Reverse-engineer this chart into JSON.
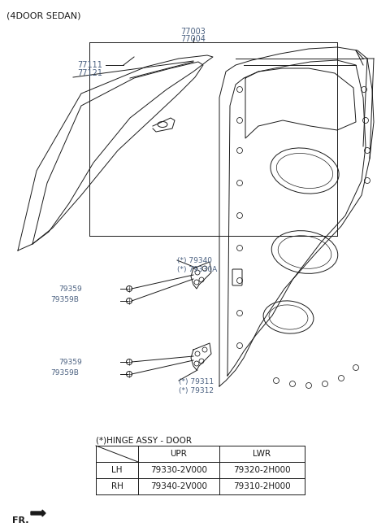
{
  "title": "(4DOOR SEDAN)",
  "bg_color": "#ffffff",
  "blue_color": "#4a6080",
  "black_color": "#1a1a1a",
  "gray_color": "#888888",
  "label_77003": "77003",
  "label_77004": "77004",
  "label_77111": "77111",
  "label_77121": "77121",
  "label_79340": "(*) 79340",
  "label_79330A": "(*) 79330A",
  "label_79359_upper": "79359",
  "label_79359B_upper": "79359B",
  "label_79359_lower": "79359",
  "label_79359B_lower": "79359B",
  "label_79311": "(*) 79311",
  "label_79312": "(*) 79312",
  "hinge_title": "(*)HINGE ASSY - DOOR",
  "table_col1": "UPR",
  "table_col2": "LWR",
  "table_row1_label": "LH",
  "table_row2_label": "RH",
  "table_r1c1": "79330-2V000",
  "table_r1c2": "79320-2H000",
  "table_r2c1": "79340-2V000",
  "table_r2c2": "79310-2H000",
  "fr_label": "FR."
}
